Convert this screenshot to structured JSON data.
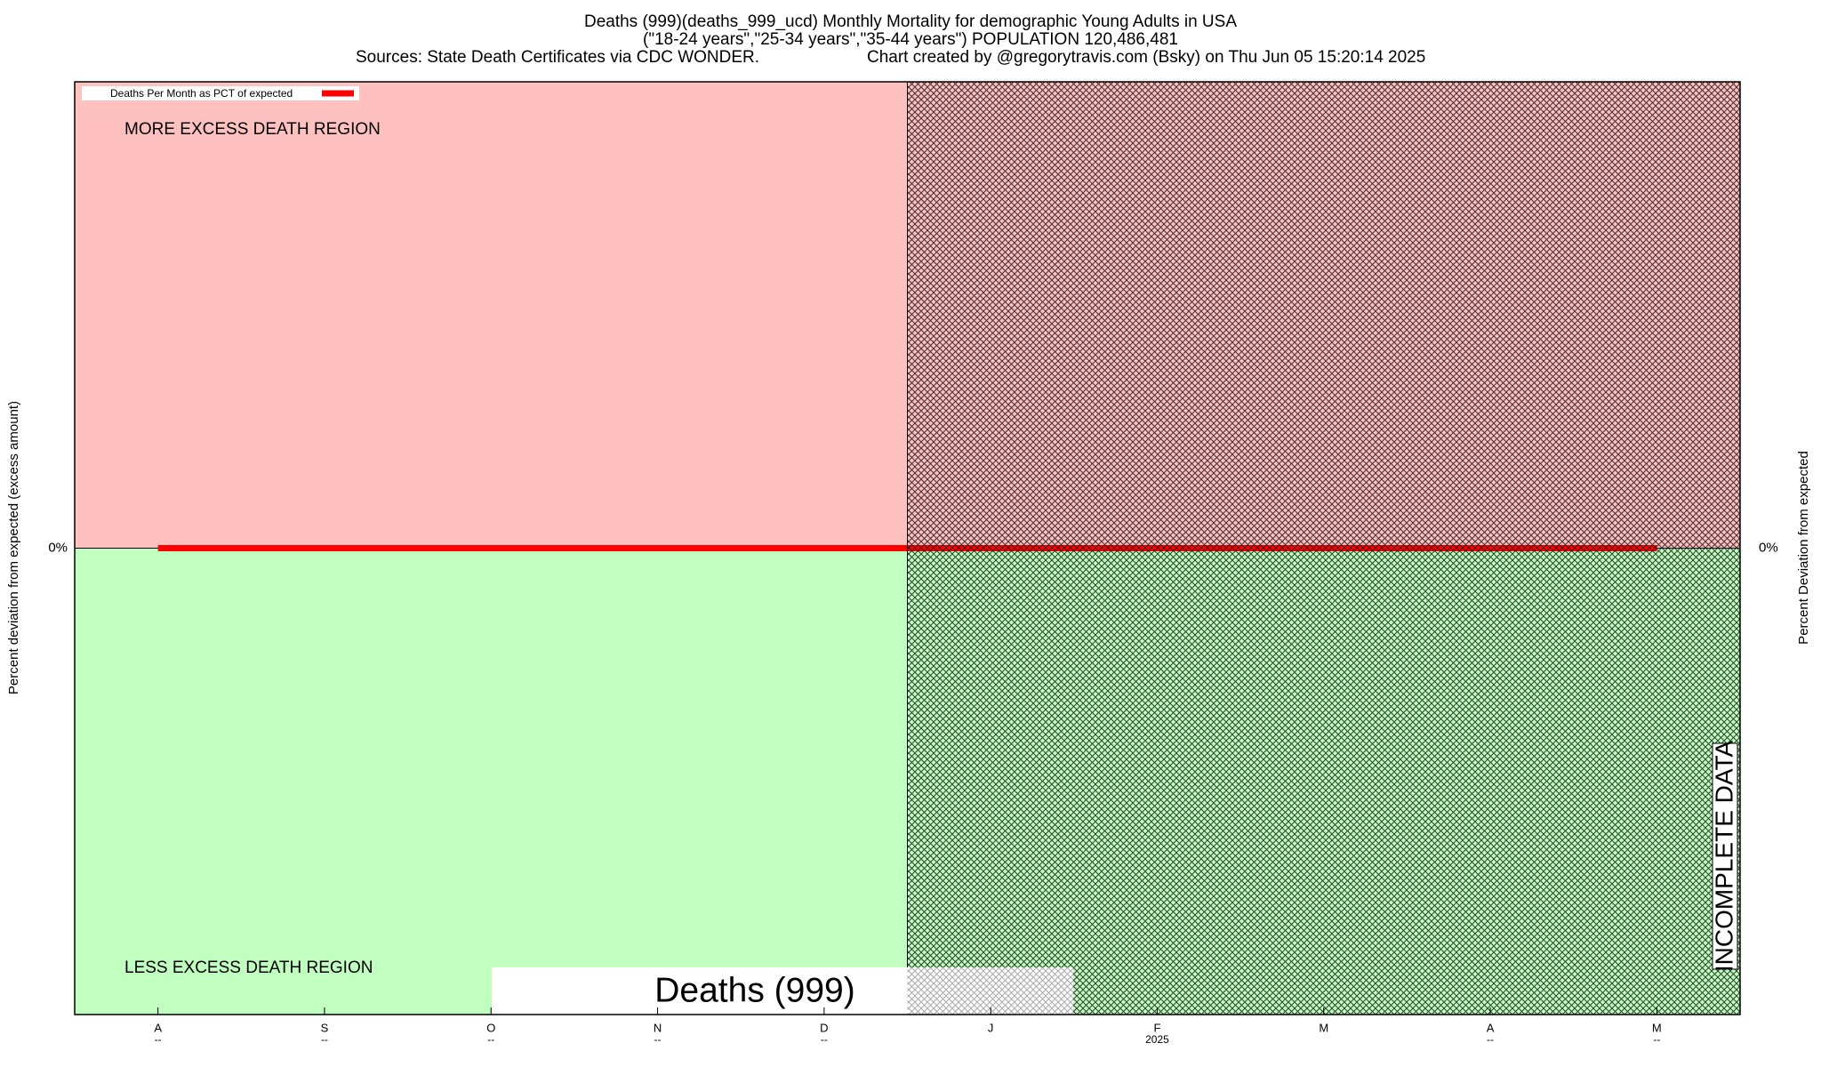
{
  "chart_data": {
    "type": "line",
    "title": "Deaths (999)(deaths_999_ucd) Monthly Mortality for demographic Young Adults in USA",
    "subtitle": "(\"18-24 years\",\"25-34 years\",\"35-44 years\") POPULATION 120,486,481",
    "source": "Sources: State Death Certificates via CDC WONDER.",
    "credit": "Chart created by @gregorytravis.com (Bsky) on Thu Jun 05 15:20:14 2025",
    "ylabel": "Percent deviation from expected (excess amount)",
    "y2label": "Percent Deviation from expected",
    "categories": [
      "A",
      "S",
      "O",
      "N",
      "D",
      "J",
      "F",
      "M",
      "A",
      "M"
    ],
    "category_sublabels": [
      "--",
      "--",
      "--",
      "--",
      "--",
      null,
      "2025",
      null,
      "--",
      "--"
    ],
    "series": [
      {
        "name": "Deaths Per Month as PCT of expected",
        "color": "#ff0000",
        "values": [
          0,
          0,
          0,
          0,
          0,
          0,
          0,
          0,
          0,
          0
        ]
      }
    ],
    "ylim": [
      -10,
      10
    ],
    "yticks": [
      {
        "value": 0,
        "label": "0%"
      }
    ],
    "y2lim": [
      -10,
      10
    ],
    "y2ticks": [
      {
        "value": 0,
        "label": "0%"
      }
    ],
    "annotations": {
      "upper_region": "MORE EXCESS DEATH REGION",
      "lower_region": "LESS EXCESS DEATH REGION",
      "incomplete": "INCOMPLETE DATA",
      "watermark": "Deaths (999)"
    }
  }
}
